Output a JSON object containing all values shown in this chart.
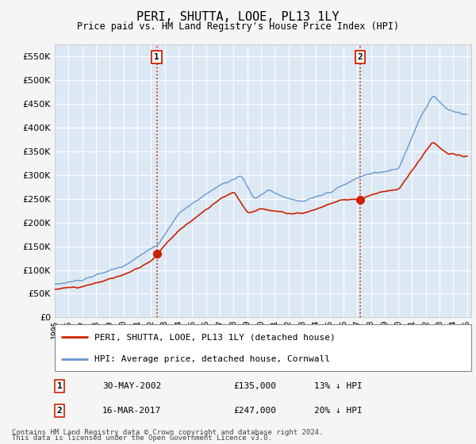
{
  "title": "PERI, SHUTTA, LOOE, PL13 1LY",
  "subtitle": "Price paid vs. HM Land Registry's House Price Index (HPI)",
  "ytick_values": [
    0,
    50000,
    100000,
    150000,
    200000,
    250000,
    300000,
    350000,
    400000,
    450000,
    500000,
    550000
  ],
  "ylim": [
    0,
    575000
  ],
  "xlim_start": 1995.0,
  "xlim_end": 2025.3,
  "background_color": "#f5f5f5",
  "plot_bg_color": "#dde8f5",
  "grid_color": "#ffffff",
  "hpi_line_color": "#6699cc",
  "price_line_color": "#cc2200",
  "vline_color": "#cc2200",
  "annotation1": {
    "label": "1",
    "date_x": 2002.42,
    "price": 135000,
    "text": "30-MAY-2002",
    "value": "£135,000",
    "pct": "13% ↓ HPI"
  },
  "annotation2": {
    "label": "2",
    "date_x": 2017.21,
    "price": 247000,
    "text": "16-MAR-2017",
    "value": "£247,000",
    "pct": "20% ↓ HPI"
  },
  "legend_label1": "PERI, SHUTTA, LOOE, PL13 1LY (detached house)",
  "legend_label2": "HPI: Average price, detached house, Cornwall",
  "footer1": "Contains HM Land Registry data © Crown copyright and database right 2024.",
  "footer2": "This data is licensed under the Open Government Licence v3.0.",
  "xtick_years": [
    1995,
    1996,
    1997,
    1998,
    1999,
    2000,
    2001,
    2002,
    2003,
    2004,
    2005,
    2006,
    2007,
    2008,
    2009,
    2010,
    2011,
    2012,
    2013,
    2014,
    2015,
    2016,
    2017,
    2018,
    2019,
    2020,
    2021,
    2022,
    2023,
    2024,
    2025
  ]
}
